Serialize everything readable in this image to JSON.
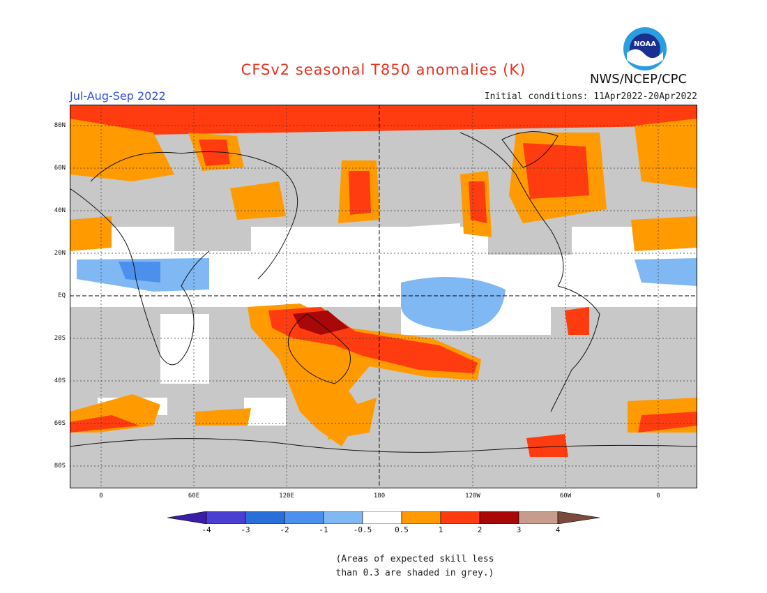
{
  "title": "CFSv2 seasonal T850 anomalies (K)",
  "season": "Jul-Aug-Sep 2022",
  "initial_conditions": "Initial conditions: 11Apr2022-20Apr2022",
  "agency": "NWS/NCEP/CPC",
  "logo_text": "NOAA",
  "lat_labels": [
    "80N",
    "60N",
    "40N",
    "20N",
    "EQ",
    "20S",
    "40S",
    "60S",
    "80S"
  ],
  "lon_labels": [
    "0",
    "60E",
    "120E",
    "180",
    "120W",
    "60W",
    "0"
  ],
  "colorbar": {
    "labels": [
      "-4",
      "-3",
      "-2",
      "-1",
      "-0.5",
      "0.5",
      "1",
      "2",
      "3",
      "4"
    ],
    "colors": [
      "#3a1ea8",
      "#4a3fd0",
      "#2a6fd8",
      "#4a90ec",
      "#80b8f4",
      "#ffffff",
      "#ff9a00",
      "#ff3c10",
      "#a80808",
      "#c89c8c",
      "#7a4a3c"
    ]
  },
  "note_line1": "(Areas of expected skill less",
  "note_line2": "than 0.3 are shaded in grey.)",
  "colors": {
    "grey_skill": "#c8c8c8",
    "title": "#e8321e",
    "season": "#2f4fe0"
  }
}
